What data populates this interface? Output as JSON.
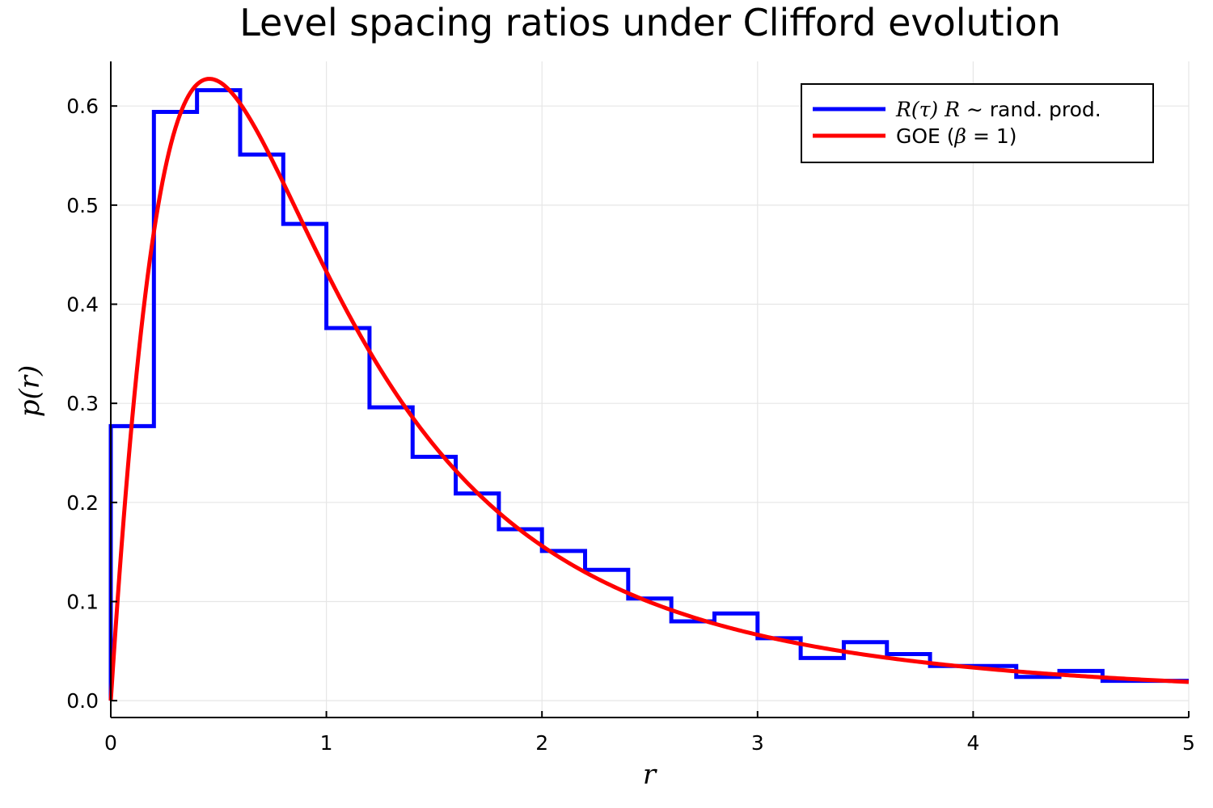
{
  "chart_data": {
    "type": "line",
    "title": "Level spacing ratios under Clifford evolution",
    "xlabel": "r",
    "ylabel": "p(r)",
    "xlim": [
      0,
      5
    ],
    "ylim": [
      -0.017,
      0.645
    ],
    "xticks": [
      0,
      1,
      2,
      3,
      4,
      5
    ],
    "xtick_labels": [
      "0",
      "1",
      "2",
      "3",
      "4",
      "5"
    ],
    "yticks": [
      0.0,
      0.1,
      0.2,
      0.3,
      0.4,
      0.5,
      0.6
    ],
    "ytick_labels": [
      "0.0",
      "0.1",
      "0.2",
      "0.3",
      "0.4",
      "0.5",
      "0.6"
    ],
    "grid": true,
    "legend": "top-right",
    "series": [
      {
        "name": "R(τ) R ∼  rand. prod.",
        "legend_math": "R(τ) R ∼",
        "legend_text": " rand. prod.",
        "kind": "step-histogram",
        "color": "#0000ff",
        "bin_edges": [
          0,
          0.2,
          0.4,
          0.6,
          0.8,
          1.0,
          1.2,
          1.4,
          1.6,
          1.8,
          2.0,
          2.2,
          2.4,
          2.6,
          2.8,
          3.0,
          3.2,
          3.4,
          3.6,
          3.8,
          4.0,
          4.2,
          4.4,
          4.6,
          4.8,
          5.0
        ],
        "values": [
          0.277,
          0.594,
          0.616,
          0.551,
          0.481,
          0.376,
          0.296,
          0.246,
          0.209,
          0.173,
          0.151,
          0.132,
          0.103,
          0.08,
          0.088,
          0.063,
          0.043,
          0.059,
          0.047,
          0.035,
          0.035,
          0.024,
          0.03,
          0.02,
          0.02
        ]
      },
      {
        "name": "GOE (β = 1)",
        "legend_text_pre": "GOE (",
        "legend_math": "β",
        "legend_text_post": " = 1)",
        "kind": "curve",
        "color": "#ff0000",
        "formula": "p(r) = (27/8) (r + r^2) / (1 + r + r^2)^(5/2)"
      }
    ]
  }
}
